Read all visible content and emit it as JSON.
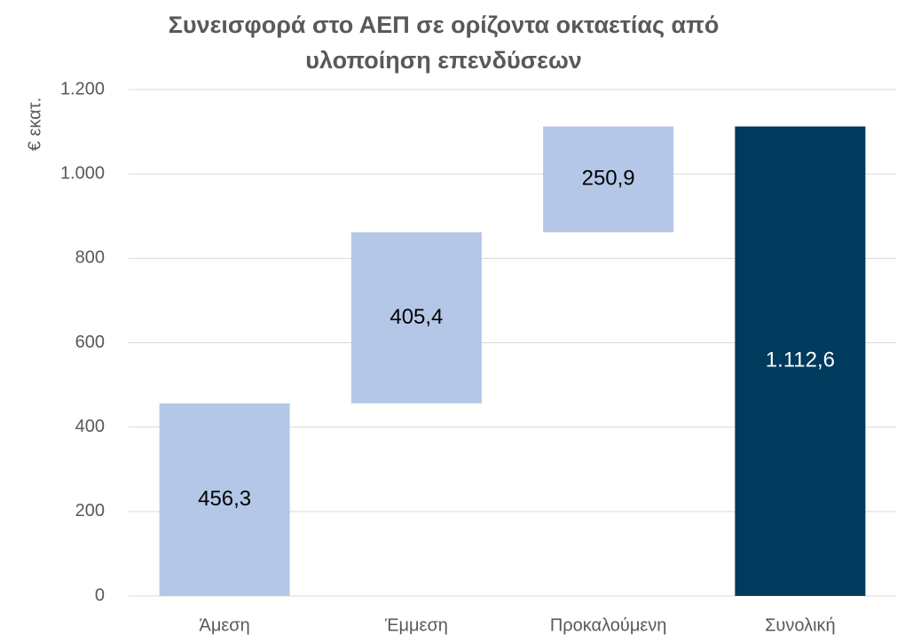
{
  "chart_data": {
    "type": "waterfall",
    "title": [
      "Συνεισφορά στο ΑΕΠ σε ορίζοντα οκταετίας από",
      "υλοποίηση επενδύσεων"
    ],
    "y_label": "€ εκατ.",
    "categories": [
      "Άμεση",
      "Έμμεση",
      "Προκαλούμενη",
      "Συνολική"
    ],
    "values": [
      456.3,
      405.4,
      250.9,
      1112.6
    ],
    "value_labels": [
      "456,3",
      "405,4",
      "250,9",
      "1.112,6"
    ],
    "is_total": [
      false,
      false,
      false,
      true
    ],
    "colors": [
      "#b4c7e7",
      "#b4c7e7",
      "#b4c7e7",
      "#003a5d"
    ],
    "ylim": [
      0,
      1200
    ],
    "yticks": [
      0,
      200,
      400,
      600,
      800,
      {
        "value": 1000,
        "label": "1.000"
      },
      {
        "value": 1200,
        "label": "1.200"
      }
    ],
    "grid": true
  }
}
